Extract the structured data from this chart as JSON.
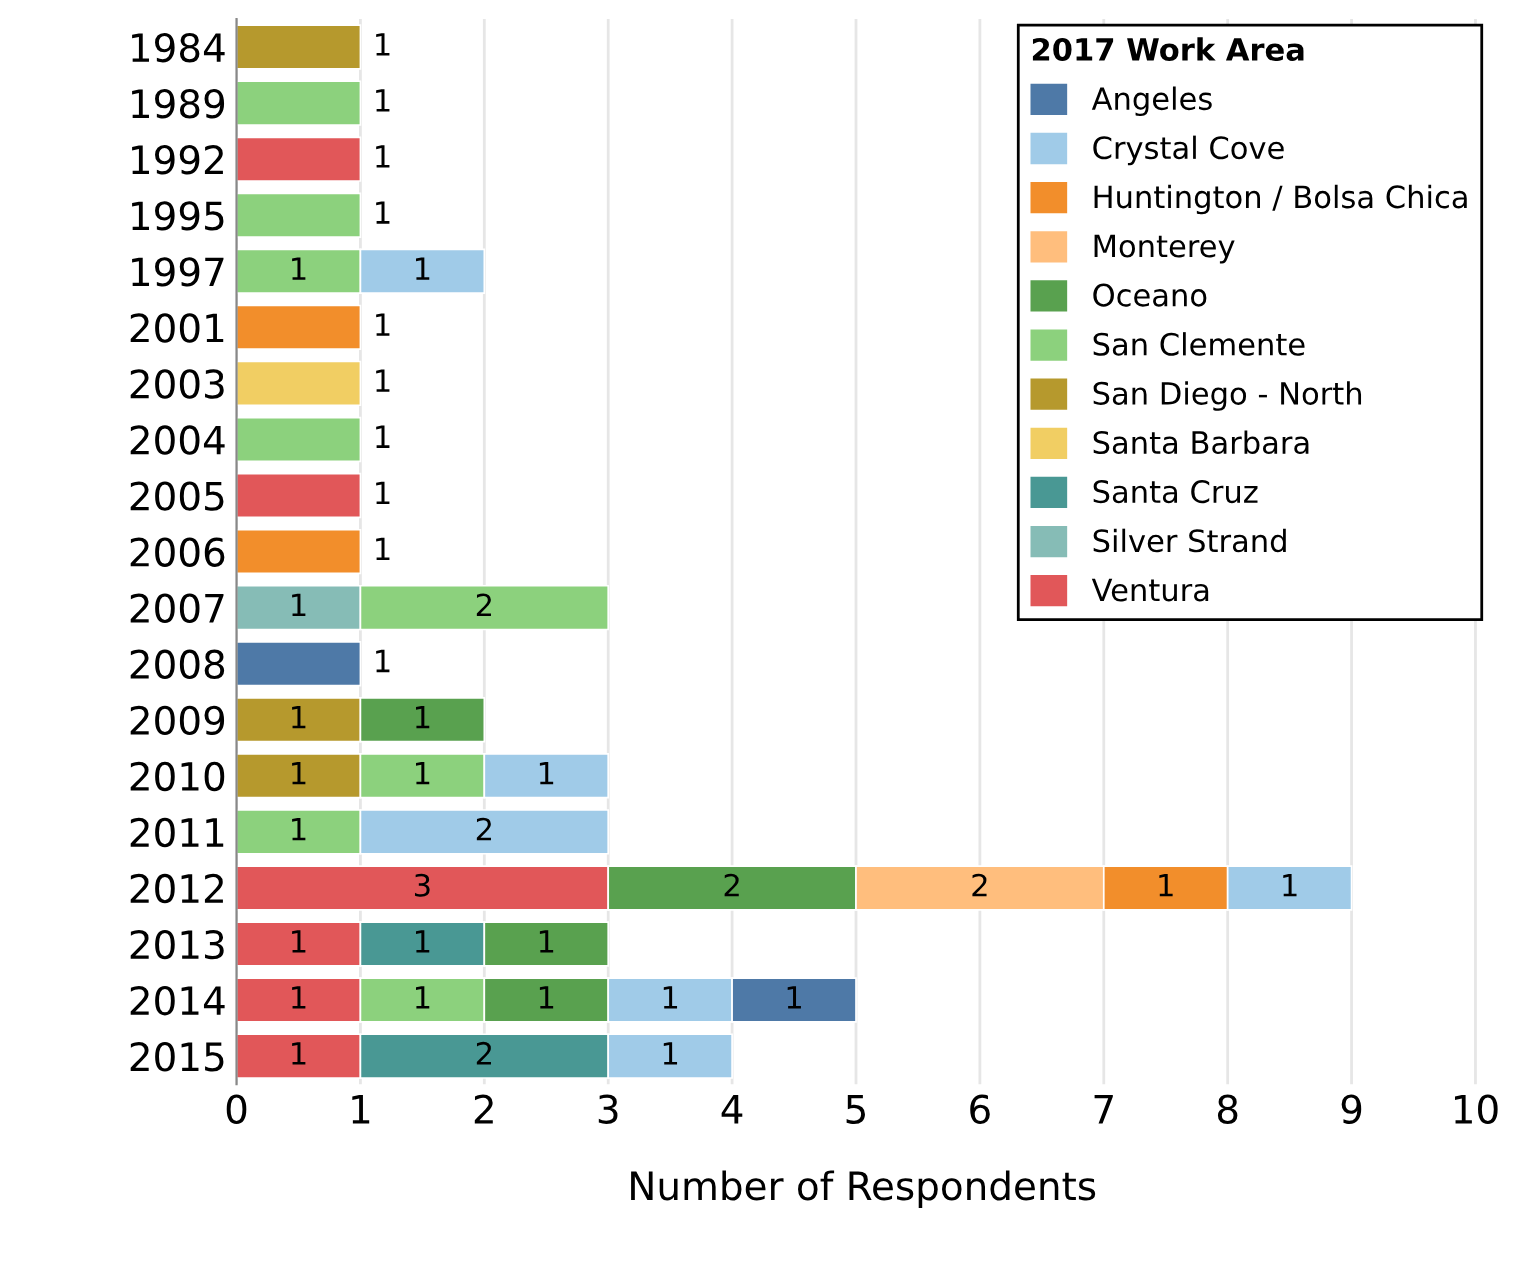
{
  "chart_data": {
    "type": "bar",
    "orientation": "horizontal",
    "stacked": true,
    "xlabel": "Number of Respondents",
    "legend_title": "2017 Work Area",
    "legend": "top right",
    "grid": "x",
    "data_labels": true,
    "categories": [
      "1984",
      "1989",
      "1992",
      "1995",
      "1997",
      "2001",
      "2003",
      "2004",
      "2005",
      "2006",
      "2007",
      "2008",
      "2009",
      "2010",
      "2011",
      "2012",
      "2013",
      "2014",
      "2015"
    ],
    "xlim": [
      0,
      10.1
    ],
    "xticks": [
      0,
      1,
      2,
      3,
      4,
      5,
      6,
      7,
      8,
      9,
      10
    ],
    "series": [
      {
        "name": "Ventura",
        "color": "#e15759",
        "values": [
          null,
          null,
          1,
          null,
          null,
          null,
          null,
          null,
          1,
          null,
          null,
          null,
          null,
          null,
          null,
          3,
          1,
          1,
          1
        ]
      },
      {
        "name": "Silver Strand",
        "color": "#86bcb6",
        "values": [
          null,
          null,
          null,
          null,
          null,
          null,
          null,
          null,
          null,
          null,
          1,
          null,
          null,
          null,
          null,
          null,
          null,
          null,
          null
        ]
      },
      {
        "name": "Santa Cruz",
        "color": "#499894",
        "values": [
          null,
          null,
          null,
          null,
          null,
          null,
          null,
          null,
          null,
          null,
          null,
          null,
          null,
          null,
          null,
          null,
          1,
          null,
          2
        ]
      },
      {
        "name": "Santa Barbara",
        "color": "#f1ce63",
        "values": [
          null,
          null,
          null,
          null,
          null,
          null,
          1,
          null,
          null,
          null,
          null,
          null,
          null,
          null,
          null,
          null,
          null,
          null,
          null
        ]
      },
      {
        "name": "San Diego - North",
        "color": "#b6992d",
        "values": [
          1,
          null,
          null,
          null,
          null,
          null,
          null,
          null,
          null,
          null,
          null,
          null,
          1,
          1,
          null,
          null,
          null,
          null,
          null
        ]
      },
      {
        "name": "San Clemente",
        "color": "#8cd17d",
        "values": [
          null,
          1,
          null,
          1,
          1,
          null,
          null,
          1,
          null,
          null,
          2,
          null,
          null,
          1,
          1,
          null,
          null,
          1,
          null
        ]
      },
      {
        "name": "Oceano",
        "color": "#59a14f",
        "values": [
          null,
          null,
          null,
          null,
          null,
          null,
          null,
          null,
          null,
          null,
          null,
          null,
          1,
          null,
          null,
          2,
          1,
          1,
          null
        ]
      },
      {
        "name": "Monterey",
        "color": "#ffbe7d",
        "values": [
          null,
          null,
          null,
          null,
          null,
          null,
          null,
          null,
          null,
          null,
          null,
          null,
          null,
          null,
          null,
          2,
          null,
          null,
          null
        ]
      },
      {
        "name": "Huntington / Bolsa Chica",
        "color": "#f28e2b",
        "values": [
          null,
          null,
          null,
          null,
          null,
          1,
          null,
          null,
          null,
          1,
          null,
          null,
          null,
          null,
          null,
          1,
          null,
          null,
          null
        ]
      },
      {
        "name": "Crystal Cove",
        "color": "#a0cbe8",
        "values": [
          null,
          null,
          null,
          null,
          1,
          null,
          null,
          null,
          null,
          null,
          null,
          null,
          null,
          1,
          2,
          1,
          null,
          1,
          1
        ]
      },
      {
        "name": "Angeles",
        "color": "#4e79a7",
        "values": [
          null,
          null,
          null,
          null,
          null,
          null,
          null,
          null,
          null,
          null,
          null,
          1,
          null,
          null,
          null,
          null,
          null,
          1,
          null
        ]
      }
    ]
  }
}
